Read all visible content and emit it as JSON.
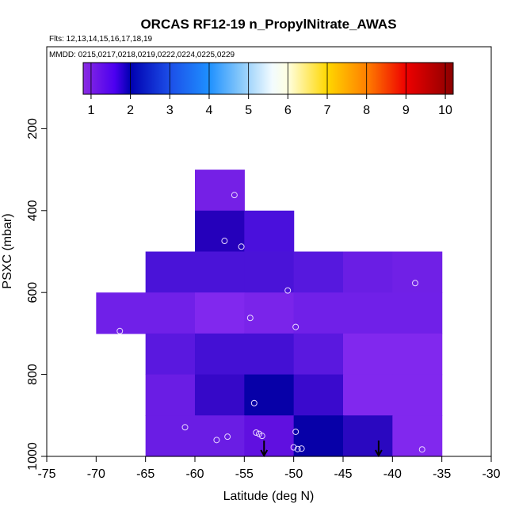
{
  "chart_data": {
    "type": "heatmap",
    "title": "ORCAS RF12-19 n_PropylNitrate_AWAS",
    "flights_label": "Flts: 12,13,14,15,16,17,18,19",
    "mmdd_label": "MMDD: 0215,0217,0218,0219,0222,0224,0225,0229",
    "xlabel": "Latitude (deg N)",
    "ylabel": "PSXC (mbar)",
    "xlim": [
      -75,
      -30
    ],
    "ylim": [
      1000,
      0
    ],
    "x_ticks": [
      -75,
      -70,
      -65,
      -60,
      -55,
      -50,
      -45,
      -40,
      -35,
      -30
    ],
    "y_ticks": [
      200,
      400,
      600,
      800,
      1000
    ],
    "colorbar": {
      "range": [
        0.8,
        10.2
      ],
      "ticks": [
        1,
        2,
        3,
        4,
        5,
        6,
        7,
        8,
        9,
        10
      ],
      "color_stops": [
        {
          "value": 0.8,
          "color": "#8a2be2"
        },
        {
          "value": 1.6,
          "color": "#4c00f0"
        },
        {
          "value": 2.0,
          "color": "#0000b0"
        },
        {
          "value": 3.0,
          "color": "#1c4ee8"
        },
        {
          "value": 4.0,
          "color": "#1e90ff"
        },
        {
          "value": 4.8,
          "color": "#87c8fa"
        },
        {
          "value": 5.6,
          "color": "#f2fbff"
        },
        {
          "value": 6.0,
          "color": "#ffffe0"
        },
        {
          "value": 7.0,
          "color": "#ffd700"
        },
        {
          "value": 8.0,
          "color": "#ff7f00"
        },
        {
          "value": 9.0,
          "color": "#ee0000"
        },
        {
          "value": 10.2,
          "color": "#8b0000"
        }
      ]
    },
    "cells": [
      {
        "lat": [
          -60,
          -55
        ],
        "p": [
          300,
          400
        ],
        "color": "#7520e6"
      },
      {
        "lat": [
          -60,
          -55
        ],
        "p": [
          400,
          500
        ],
        "color": "#2500bb"
      },
      {
        "lat": [
          -55,
          -50
        ],
        "p": [
          400,
          500
        ],
        "color": "#4a10dc"
      },
      {
        "lat": [
          -65,
          -60
        ],
        "p": [
          500,
          600
        ],
        "color": "#4a13d8"
      },
      {
        "lat": [
          -60,
          -55
        ],
        "p": [
          500,
          600
        ],
        "color": "#4a13d8"
      },
      {
        "lat": [
          -55,
          -50
        ],
        "p": [
          500,
          600
        ],
        "color": "#4a13d8"
      },
      {
        "lat": [
          -50,
          -45
        ],
        "p": [
          500,
          600
        ],
        "color": "#5618de"
      },
      {
        "lat": [
          -45,
          -40
        ],
        "p": [
          500,
          600
        ],
        "color": "#6a1ee4"
      },
      {
        "lat": [
          -40,
          -35
        ],
        "p": [
          500,
          600
        ],
        "color": "#7020e6"
      },
      {
        "lat": [
          -70,
          -65
        ],
        "p": [
          600,
          700
        ],
        "color": "#7020e8"
      },
      {
        "lat": [
          -65,
          -60
        ],
        "p": [
          600,
          700
        ],
        "color": "#7020e8"
      },
      {
        "lat": [
          -60,
          -55
        ],
        "p": [
          600,
          700
        ],
        "color": "#8128ee"
      },
      {
        "lat": [
          -55,
          -50
        ],
        "p": [
          600,
          700
        ],
        "color": "#7a24ea"
      },
      {
        "lat": [
          -50,
          -45
        ],
        "p": [
          600,
          700
        ],
        "color": "#7020e8"
      },
      {
        "lat": [
          -45,
          -40
        ],
        "p": [
          600,
          700
        ],
        "color": "#7020e8"
      },
      {
        "lat": [
          -40,
          -35
        ],
        "p": [
          600,
          700
        ],
        "color": "#7020e8"
      },
      {
        "lat": [
          -65,
          -60
        ],
        "p": [
          700,
          800
        ],
        "color": "#5a18df"
      },
      {
        "lat": [
          -60,
          -55
        ],
        "p": [
          700,
          800
        ],
        "color": "#4410d4"
      },
      {
        "lat": [
          -55,
          -50
        ],
        "p": [
          700,
          800
        ],
        "color": "#4410d4"
      },
      {
        "lat": [
          -50,
          -45
        ],
        "p": [
          700,
          800
        ],
        "color": "#5a18df"
      },
      {
        "lat": [
          -45,
          -40
        ],
        "p": [
          700,
          800
        ],
        "color": "#8128ee"
      },
      {
        "lat": [
          -40,
          -35
        ],
        "p": [
          700,
          800
        ],
        "color": "#8128ee"
      },
      {
        "lat": [
          -65,
          -60
        ],
        "p": [
          800,
          900
        ],
        "color": "#6a1de4"
      },
      {
        "lat": [
          -60,
          -55
        ],
        "p": [
          800,
          900
        ],
        "color": "#3608c8"
      },
      {
        "lat": [
          -55,
          -50
        ],
        "p": [
          800,
          900
        ],
        "color": "#0700a8"
      },
      {
        "lat": [
          -50,
          -45
        ],
        "p": [
          800,
          900
        ],
        "color": "#3a0acd"
      },
      {
        "lat": [
          -45,
          -40
        ],
        "p": [
          800,
          900
        ],
        "color": "#8128ee"
      },
      {
        "lat": [
          -40,
          -35
        ],
        "p": [
          800,
          900
        ],
        "color": "#8128ee"
      },
      {
        "lat": [
          -65,
          -60
        ],
        "p": [
          900,
          1000
        ],
        "color": "#6a1de4"
      },
      {
        "lat": [
          -60,
          -55
        ],
        "p": [
          900,
          1000
        ],
        "color": "#6a1de4"
      },
      {
        "lat": [
          -55,
          -50
        ],
        "p": [
          900,
          1000
        ],
        "color": "#6010e0"
      },
      {
        "lat": [
          -50,
          -45
        ],
        "p": [
          900,
          1000
        ],
        "color": "#0700a8"
      },
      {
        "lat": [
          -45,
          -40
        ],
        "p": [
          900,
          1000
        ],
        "color": "#2a08c0"
      },
      {
        "lat": [
          -40,
          -35
        ],
        "p": [
          900,
          1000
        ],
        "color": "#8128ee"
      }
    ],
    "samples": [
      {
        "lat": -56.0,
        "p": 362
      },
      {
        "lat": -57.0,
        "p": 474
      },
      {
        "lat": -55.3,
        "p": 488
      },
      {
        "lat": -50.6,
        "p": 595
      },
      {
        "lat": -37.7,
        "p": 577
      },
      {
        "lat": -67.6,
        "p": 694
      },
      {
        "lat": -54.4,
        "p": 662
      },
      {
        "lat": -49.8,
        "p": 684
      },
      {
        "lat": -54.0,
        "p": 870
      },
      {
        "lat": -61.0,
        "p": 929
      },
      {
        "lat": -57.8,
        "p": 960
      },
      {
        "lat": -56.7,
        "p": 952
      },
      {
        "lat": -53.8,
        "p": 942
      },
      {
        "lat": -53.5,
        "p": 945
      },
      {
        "lat": -53.2,
        "p": 950
      },
      {
        "lat": -49.8,
        "p": 940
      },
      {
        "lat": -50.0,
        "p": 978
      },
      {
        "lat": -49.6,
        "p": 982
      },
      {
        "lat": -49.2,
        "p": 981
      },
      {
        "lat": -37.0,
        "p": 983
      }
    ],
    "arrows": [
      {
        "lat": -53.0,
        "p": 1000
      },
      {
        "lat": -41.4,
        "p": 1000
      }
    ]
  }
}
